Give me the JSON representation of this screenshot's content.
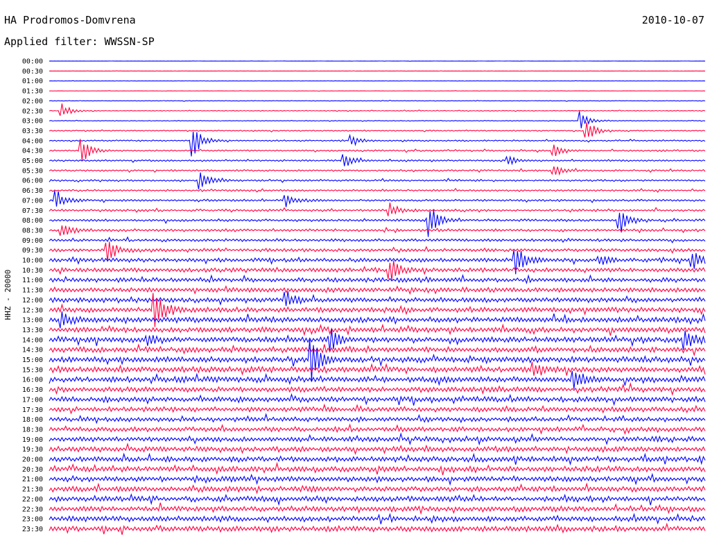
{
  "header": {
    "station": "HA Prodromos-Domvrena",
    "date": "2010-10-07",
    "filter": "Applied filter: WWSSN-SP"
  },
  "chart_data": {
    "type": "line",
    "title": "HA Prodromos-Domvrena",
    "subtitle": "Applied filter: WWSSN-SP",
    "date": "2010-10-07",
    "ylabel": "HHZ - 20000",
    "trace_colors": [
      "#0000ff",
      "#ff0040"
    ],
    "row_labels": [
      "00:00",
      "00:30",
      "01:00",
      "01:30",
      "02:00",
      "02:30",
      "03:00",
      "03:30",
      "04:00",
      "04:30",
      "05:00",
      "05:30",
      "06:00",
      "06:30",
      "07:00",
      "07:30",
      "08:00",
      "08:30",
      "09:00",
      "09:30",
      "10:00",
      "10:30",
      "11:00",
      "11:30",
      "12:00",
      "12:30",
      "13:00",
      "13:30",
      "14:00",
      "14:30",
      "15:00",
      "15:30",
      "16:00",
      "16:30",
      "17:00",
      "17:30",
      "18:00",
      "18:30",
      "19:00",
      "19:30",
      "20:00",
      "20:30",
      "21:00",
      "21:30",
      "22:00",
      "22:30",
      "23:00",
      "23:30"
    ],
    "noise_level": [
      0.1,
      0.1,
      0.15,
      0.15,
      0.3,
      0.4,
      0.4,
      0.6,
      0.8,
      0.9,
      1.0,
      1.0,
      1.0,
      1.1,
      1.2,
      1.3,
      1.4,
      1.5,
      1.6,
      1.9,
      2.2,
      2.4,
      2.5,
      2.7,
      2.8,
      2.9,
      3.0,
      3.0,
      3.0,
      3.1,
      3.2,
      3.2,
      3.2,
      3.0,
      3.0,
      2.8,
      2.5,
      2.6,
      2.8,
      3.0,
      3.0,
      3.0,
      3.0,
      3.0,
      3.0,
      3.0,
      3.0,
      3.2
    ],
    "events": [
      {
        "row": 5,
        "t": 0.02,
        "amp": 10
      },
      {
        "row": 6,
        "t": 0.81,
        "amp": 14
      },
      {
        "row": 7,
        "t": 0.82,
        "amp": 16
      },
      {
        "row": 8,
        "t": 0.22,
        "amp": 22
      },
      {
        "row": 8,
        "t": 0.46,
        "amp": 8
      },
      {
        "row": 9,
        "t": 0.05,
        "amp": 18
      },
      {
        "row": 9,
        "t": 0.77,
        "amp": 10
      },
      {
        "row": 10,
        "t": 0.45,
        "amp": 12
      },
      {
        "row": 10,
        "t": 0.7,
        "amp": 6
      },
      {
        "row": 11,
        "t": 0.77,
        "amp": 8
      },
      {
        "row": 12,
        "t": 0.23,
        "amp": 18
      },
      {
        "row": 14,
        "t": 0.01,
        "amp": 16
      },
      {
        "row": 14,
        "t": 0.36,
        "amp": 10
      },
      {
        "row": 15,
        "t": 0.52,
        "amp": 10
      },
      {
        "row": 16,
        "t": 0.87,
        "amp": 18
      },
      {
        "row": 16,
        "t": 0.58,
        "amp": 26
      },
      {
        "row": 17,
        "t": 0.02,
        "amp": 10
      },
      {
        "row": 19,
        "t": 0.09,
        "amp": 16
      },
      {
        "row": 20,
        "t": 0.71,
        "amp": 26
      },
      {
        "row": 20,
        "t": 0.84,
        "amp": 8
      },
      {
        "row": 20,
        "t": 0.98,
        "amp": 16
      },
      {
        "row": 21,
        "t": 0.52,
        "amp": 18
      },
      {
        "row": 24,
        "t": 0.36,
        "amp": 14
      },
      {
        "row": 25,
        "t": 0.16,
        "amp": 30
      },
      {
        "row": 26,
        "t": 0.02,
        "amp": 10
      },
      {
        "row": 28,
        "t": 0.43,
        "amp": 16
      },
      {
        "row": 28,
        "t": 0.97,
        "amp": 16
      },
      {
        "row": 28,
        "t": 0.15,
        "amp": 8
      },
      {
        "row": 30,
        "t": 0.4,
        "amp": 28
      },
      {
        "row": 31,
        "t": 0.74,
        "amp": 10
      },
      {
        "row": 32,
        "t": 0.8,
        "amp": 14
      }
    ]
  }
}
